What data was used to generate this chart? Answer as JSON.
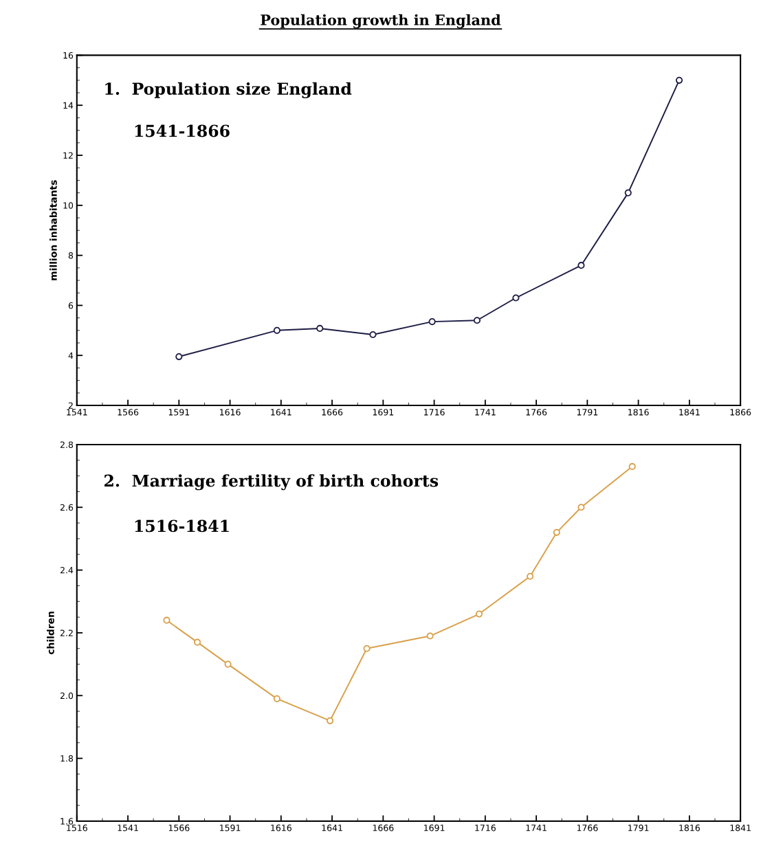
{
  "chart_data": [
    {
      "type": "line",
      "title": "Population growth in England",
      "ylabel": "million inhabitants",
      "annotations": [
        "1.  Population size England",
        "1541-1866"
      ],
      "series": [
        {
          "color": "#1c1c44",
          "x": [
            1591,
            1639,
            1660,
            1686,
            1715,
            1737,
            1756,
            1788,
            1811,
            1836
          ],
          "values": [
            3.95,
            5.0,
            5.08,
            4.83,
            5.35,
            5.4,
            6.3,
            7.6,
            10.5,
            15.0
          ]
        }
      ],
      "xlim": [
        1541,
        1866
      ],
      "xticks": [
        1541,
        1566,
        1591,
        1616,
        1641,
        1666,
        1691,
        1716,
        1741,
        1766,
        1791,
        1816,
        1841,
        1866
      ],
      "ylim": [
        2,
        16
      ],
      "yticks": [
        2,
        4,
        6,
        8,
        10,
        12,
        14,
        16
      ],
      "marker": "circle",
      "line_style": "solid",
      "grid": false
    },
    {
      "type": "line",
      "ylabel": "children",
      "annotations": [
        "2.  Marriage fertility of birth cohorts",
        "1516-1841"
      ],
      "series": [
        {
          "color": "#d9a04a",
          "x": [
            1560,
            1575,
            1590,
            1614,
            1640,
            1658,
            1689,
            1713,
            1738,
            1751,
            1763,
            1788
          ],
          "values": [
            2.24,
            2.17,
            2.1,
            1.99,
            1.92,
            2.15,
            2.19,
            2.26,
            2.38,
            2.52,
            2.6,
            2.73
          ]
        }
      ],
      "xlim": [
        1516,
        1841
      ],
      "xticks": [
        1516,
        1541,
        1566,
        1591,
        1616,
        1641,
        1666,
        1691,
        1716,
        1741,
        1766,
        1791,
        1816,
        1841
      ],
      "ylim": [
        1.6,
        2.8
      ],
      "yticks": [
        {
          "value": 1.6,
          "label": "1.6"
        },
        {
          "value": 1.8,
          "label": "1.8"
        },
        {
          "value": 2.0,
          "label": "2.0"
        },
        {
          "value": 2.2,
          "label": "2.2"
        },
        {
          "value": 2.4,
          "label": "2.4"
        },
        {
          "value": 2.6,
          "label": "2.6"
        },
        {
          "value": 2.8,
          "label": "2.8"
        }
      ],
      "marker": "circle",
      "line_style": "solid",
      "grid": false
    }
  ]
}
